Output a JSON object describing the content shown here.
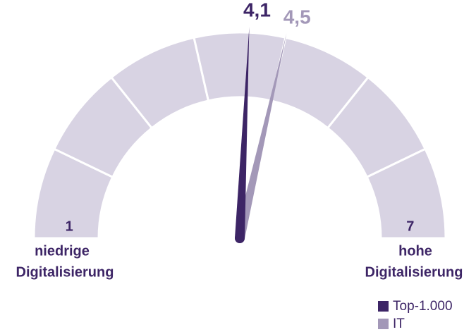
{
  "chart_data": {
    "type": "gauge",
    "gaugelim": [
      0.5,
      7.5
    ],
    "segments": 7,
    "segment_color": "#d8d3e3",
    "ticks": [
      1,
      7
    ],
    "min_label": [
      "niedrige",
      "Digitalisierung"
    ],
    "max_label": [
      "hohe",
      "Digitalisierung"
    ],
    "series": [
      {
        "name": "Top-1.000",
        "color": "#3d2566",
        "values": [
          4.1
        ],
        "value_labels": [
          "4,1"
        ]
      },
      {
        "name": "IT",
        "color": "#a398b8",
        "values": [
          4.5
        ],
        "value_labels": [
          "4,5"
        ]
      }
    ],
    "legend": "bottom-right"
  }
}
